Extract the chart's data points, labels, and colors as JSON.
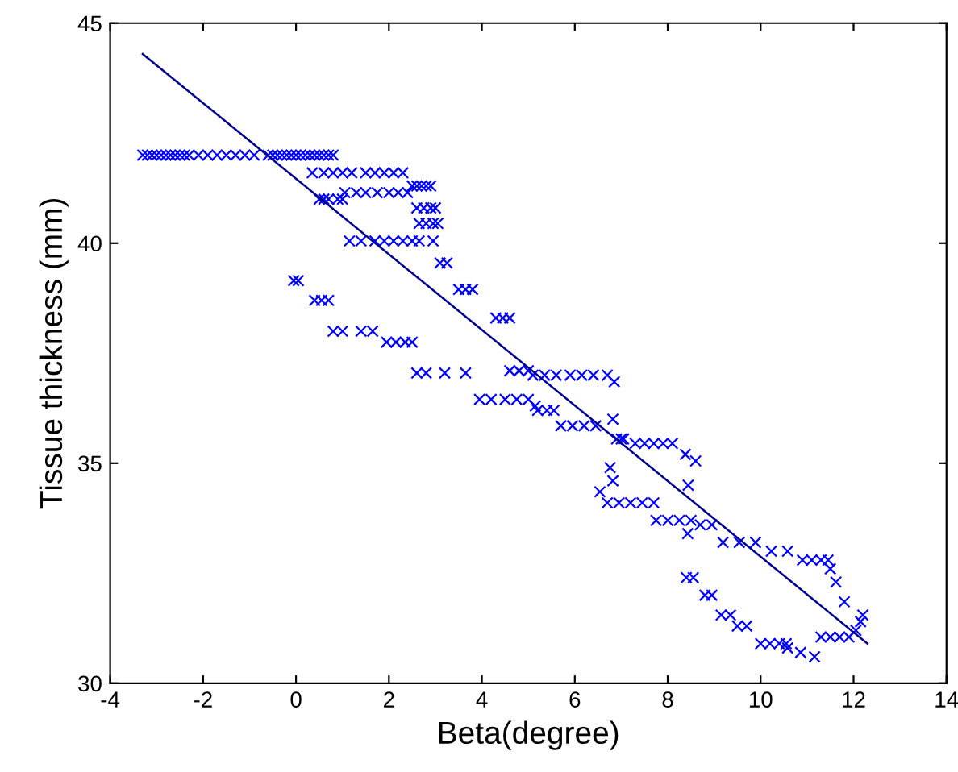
{
  "chart_data": {
    "type": "scatter",
    "xlabel": "Beta(degree)",
    "ylabel": "Tissue thickness (mm)",
    "xlim": [
      -4,
      14
    ],
    "ylim": [
      30,
      45
    ],
    "xticks": [
      -4,
      -2,
      0,
      2,
      4,
      6,
      8,
      10,
      12,
      14
    ],
    "yticks": [
      30,
      35,
      40,
      45
    ],
    "grid": false,
    "legend": false,
    "series": [
      {
        "marker": "cross",
        "color": "#0000ff",
        "x": [
          -3.3,
          -3.2,
          -3.1,
          -3.0,
          -2.9,
          -2.8,
          -2.7,
          -2.6,
          -2.5,
          -2.4,
          -2.3,
          -2.1,
          -1.9,
          -1.7,
          -1.5,
          -1.3,
          -1.1,
          -0.9,
          -0.6,
          -0.5,
          -0.4,
          -0.3,
          -0.2,
          -0.1,
          0.0,
          0.1,
          0.2,
          0.3,
          0.4,
          0.5,
          0.6,
          0.7,
          0.8,
          0.35,
          0.6,
          0.8,
          1.0,
          1.2,
          1.5,
          1.7,
          1.9,
          2.1,
          2.3,
          2.5,
          2.6,
          2.7,
          2.8,
          2.9,
          1.05,
          1.3,
          1.5,
          1.75,
          2.0,
          2.2,
          2.4,
          0.5,
          0.6,
          0.7,
          0.9,
          1.0,
          2.6,
          2.75,
          2.9,
          3.0,
          2.65,
          2.8,
          2.95,
          3.05,
          1.15,
          1.4,
          1.7,
          1.9,
          2.1,
          2.3,
          2.5,
          2.65,
          2.95,
          3.1,
          3.25,
          -0.05,
          0.05,
          3.5,
          3.65,
          3.8,
          0.4,
          0.55,
          0.7,
          4.3,
          4.45,
          4.6,
          0.8,
          1.0,
          1.4,
          1.65,
          1.95,
          2.15,
          2.35,
          2.5,
          2.6,
          2.8,
          3.2,
          3.65,
          4.6,
          4.8,
          5.0,
          3.95,
          4.2,
          4.5,
          4.75,
          5.0,
          5.15,
          5.1,
          5.35,
          5.6,
          5.9,
          6.15,
          6.4,
          6.7,
          6.85,
          5.2,
          5.4,
          5.55,
          5.7,
          5.95,
          6.2,
          6.45,
          6.82,
          6.9,
          7.0,
          7.05,
          7.3,
          7.5,
          7.7,
          7.9,
          8.1,
          8.38,
          8.6,
          6.76,
          6.82,
          6.54,
          6.7,
          6.95,
          7.2,
          7.45,
          7.7,
          8.44,
          7.75,
          8.0,
          8.25,
          8.5,
          8.43,
          8.7,
          8.95,
          9.19,
          9.54,
          9.89,
          10.23,
          10.58,
          10.9,
          11.1,
          11.3,
          11.45,
          11.5,
          11.62,
          11.8,
          12.2,
          12.15,
          11.3,
          11.5,
          11.7,
          11.9,
          12.05,
          8.4,
          8.55,
          8.8,
          8.95,
          9.15,
          9.35,
          9.5,
          9.7,
          10.0,
          10.2,
          10.4,
          10.55,
          10.58,
          10.86,
          11.16
        ],
        "values": [
          42,
          42,
          42,
          42,
          42,
          42,
          42,
          42,
          42,
          42,
          42,
          42,
          42,
          42,
          42,
          42,
          42,
          42,
          42,
          42,
          42,
          42,
          42,
          42,
          42,
          42,
          42,
          42,
          42,
          42,
          42,
          42,
          42,
          41.6,
          41.6,
          41.6,
          41.6,
          41.6,
          41.6,
          41.6,
          41.6,
          41.6,
          41.6,
          41.3,
          41.3,
          41.3,
          41.3,
          41.3,
          41.15,
          41.15,
          41.15,
          41.15,
          41.15,
          41.15,
          41.15,
          41,
          41,
          41,
          41,
          41,
          40.8,
          40.8,
          40.8,
          40.8,
          40.45,
          40.45,
          40.45,
          40.45,
          40.05,
          40.05,
          40.05,
          40.05,
          40.05,
          40.05,
          40.05,
          40.05,
          40.05,
          39.55,
          39.55,
          39.15,
          39.15,
          38.95,
          38.95,
          38.95,
          38.7,
          38.7,
          38.7,
          38.3,
          38.3,
          38.3,
          38,
          38,
          38,
          38,
          37.75,
          37.75,
          37.75,
          37.75,
          37.05,
          37.05,
          37.05,
          37.05,
          37.1,
          37.1,
          37.1,
          36.45,
          36.45,
          36.45,
          36.45,
          36.45,
          36.3,
          37,
          37,
          37,
          37,
          37,
          37,
          37,
          36.85,
          36.2,
          36.2,
          36.2,
          35.85,
          35.85,
          35.85,
          35.85,
          36,
          35.55,
          35.55,
          35.55,
          35.45,
          35.45,
          35.45,
          35.45,
          35.45,
          35.2,
          35.05,
          34.9,
          34.6,
          34.35,
          34.1,
          34.1,
          34.1,
          34.1,
          34.1,
          34.5,
          33.7,
          33.7,
          33.7,
          33.7,
          33.4,
          33.6,
          33.6,
          33.2,
          33.2,
          33.2,
          33,
          33,
          32.8,
          32.8,
          32.8,
          32.8,
          32.6,
          32.3,
          31.85,
          31.55,
          31.4,
          31.05,
          31.05,
          31.05,
          31.05,
          31.2,
          32.4,
          32.4,
          32,
          32,
          31.55,
          31.55,
          31.3,
          31.3,
          30.9,
          30.9,
          30.9,
          30.9,
          30.8,
          30.7,
          30.6
        ]
      },
      {
        "type": "line",
        "marker": "none",
        "line_style": "solid",
        "color": "#00008b",
        "x": [
          -3.3,
          12.3
        ],
        "values": [
          44.3,
          30.9
        ]
      }
    ]
  }
}
